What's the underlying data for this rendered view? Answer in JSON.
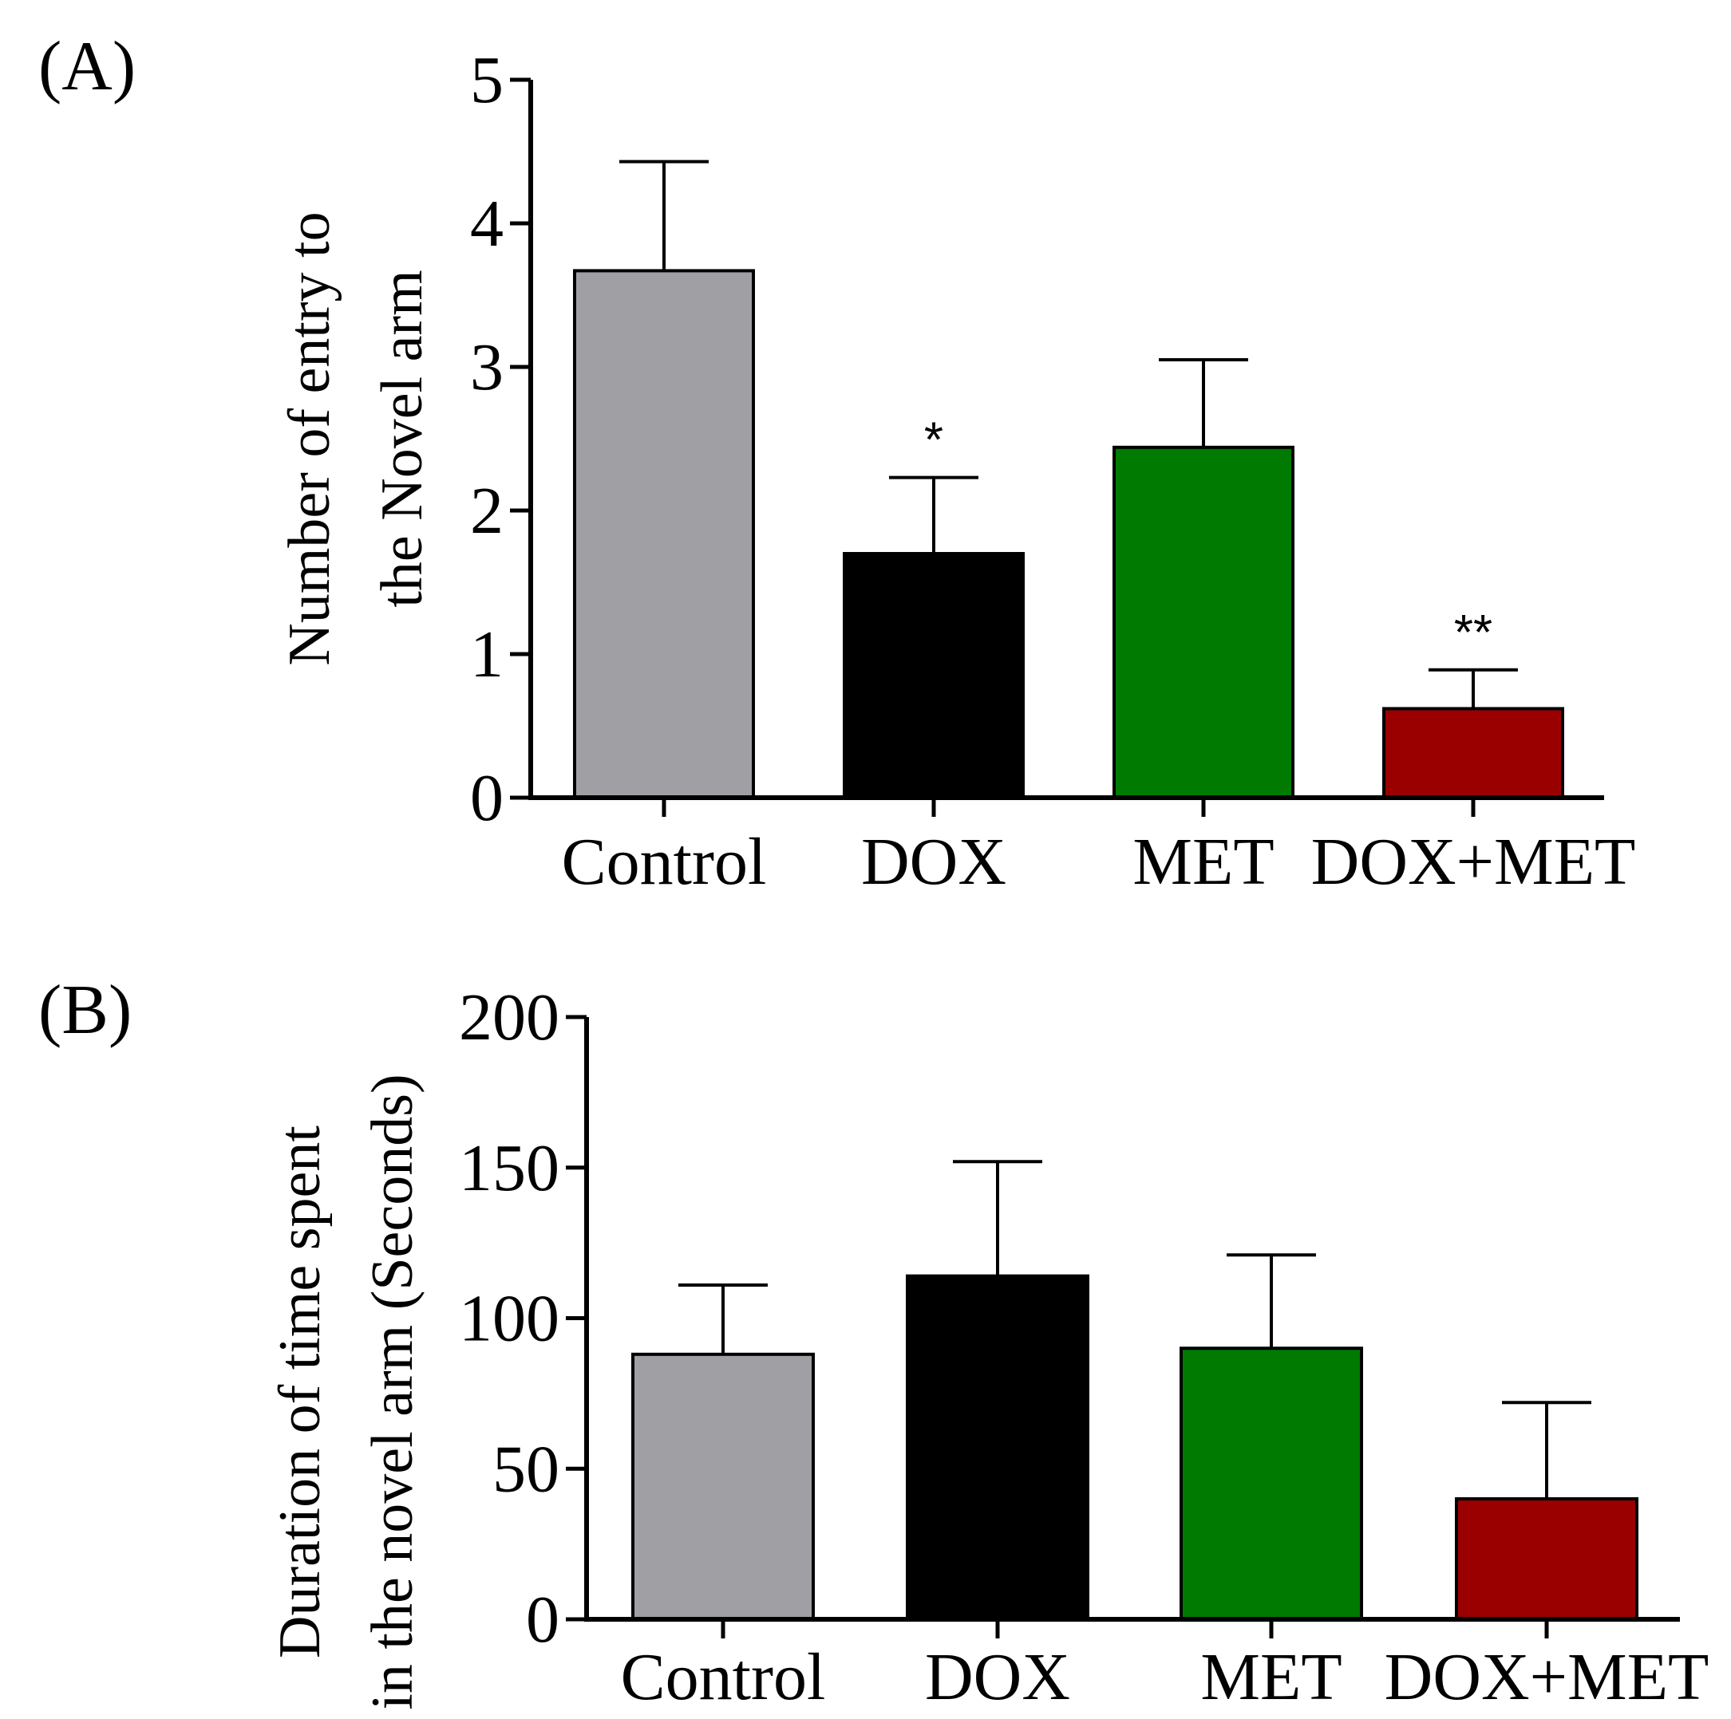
{
  "colors": {
    "Control": "#a0a0a4",
    "DOX": "#000000",
    "MET": "#007a00",
    "DOX+MET": "#9b0000"
  },
  "chart_data": [
    {
      "type": "bar",
      "panel_label": "(A)",
      "categories": [
        "Control",
        "DOX",
        "MET",
        "DOX+MET"
      ],
      "values": [
        3.67,
        1.7,
        2.44,
        0.62
      ],
      "errors": [
        0.76,
        0.53,
        0.61,
        0.27
      ],
      "significance": [
        "",
        "*",
        "",
        "**"
      ],
      "ylabel_lines": [
        "Number of entry to",
        "the Novel arm"
      ],
      "xlabel": "",
      "ylim": [
        0,
        5
      ],
      "yticks": [
        0,
        1,
        2,
        3,
        4,
        5
      ],
      "ytick_labels": [
        "0",
        "1",
        "2",
        "3",
        "4",
        "5"
      ]
    },
    {
      "type": "bar",
      "panel_label": "(B)",
      "categories": [
        "Control",
        "DOX",
        "MET",
        "DOX+MET"
      ],
      "values": [
        88,
        114,
        90,
        40
      ],
      "errors": [
        23,
        38,
        31,
        32
      ],
      "significance": [
        "",
        "",
        "",
        ""
      ],
      "ylabel_lines": [
        "Duration of time spent",
        "in the novel arm (Seconds)"
      ],
      "xlabel": "",
      "ylim": [
        0,
        200
      ],
      "yticks": [
        0,
        50,
        100,
        150,
        200
      ],
      "ytick_labels": [
        "0",
        "50",
        "100",
        "150",
        "200"
      ]
    }
  ]
}
